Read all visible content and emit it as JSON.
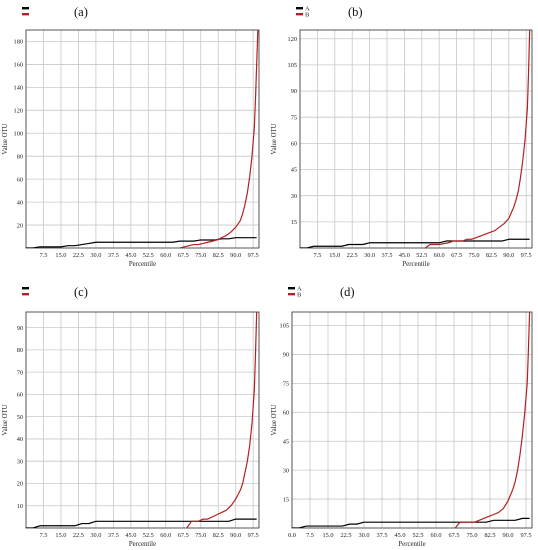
{
  "chart_data": [
    {
      "type": "line",
      "panel_label": "(a)",
      "xlabel": "Percentile",
      "ylabel": "Value OTU",
      "legend": [
        {
          "label": "",
          "color": "#000000"
        },
        {
          "label": "",
          "color": "#b22222"
        }
      ],
      "xlim": [
        0,
        100
      ],
      "ylim": [
        0,
        190
      ],
      "x_ticks": [
        "7.5",
        "15.0",
        "22.5",
        "30.0",
        "37.5",
        "45.0",
        "52.5",
        "60.0",
        "67.5",
        "75.0",
        "82.5",
        "90.0",
        "97.5"
      ],
      "y_ticks": [
        20,
        40,
        60,
        80,
        100,
        120,
        140,
        160,
        180
      ],
      "series": [
        {
          "color": "#000000",
          "x": [
            0,
            3,
            6,
            9,
            12,
            15,
            18,
            21,
            24,
            27,
            30,
            33,
            36,
            39,
            42,
            45,
            48,
            51,
            54,
            57,
            60,
            63,
            66,
            69,
            72,
            75,
            78,
            81,
            84,
            87,
            90,
            93,
            96,
            99
          ],
          "y": [
            0,
            0,
            1,
            1,
            1,
            1,
            2,
            2,
            3,
            4,
            5,
            5,
            5,
            5,
            5,
            5,
            5,
            5,
            5,
            5,
            5,
            5,
            6,
            6,
            6,
            7,
            7,
            7,
            8,
            8,
            9,
            9,
            9,
            9
          ]
        },
        {
          "color": "#b22222",
          "x": [
            66,
            68,
            70,
            72,
            74,
            76,
            78,
            80,
            82,
            84,
            86,
            88,
            90,
            91,
            92,
            93,
            94,
            95,
            96,
            97,
            98,
            98.5,
            99,
            99.5
          ],
          "y": [
            0,
            1,
            2,
            3,
            3,
            4,
            5,
            6,
            7,
            9,
            11,
            14,
            18,
            21,
            24,
            30,
            38,
            48,
            62,
            80,
            105,
            130,
            160,
            190
          ]
        }
      ]
    },
    {
      "type": "line",
      "panel_label": "(b)",
      "xlabel": "Percentile",
      "ylabel": "Value OTU",
      "legend": [
        {
          "label": "A",
          "color": "#000000"
        },
        {
          "label": "B",
          "color": "#b22222"
        }
      ],
      "xlim": [
        0,
        100
      ],
      "ylim": [
        0,
        125
      ],
      "x_ticks": [
        "7.5",
        "15.0",
        "22.5",
        "30.0",
        "37.5",
        "45.0",
        "52.5",
        "60.0",
        "67.5",
        "75.0",
        "82.5",
        "90.0",
        "97.5"
      ],
      "y_ticks": [
        15,
        30,
        45,
        60,
        75,
        90,
        105,
        120
      ],
      "series": [
        {
          "color": "#000000",
          "x": [
            0,
            3,
            6,
            9,
            12,
            15,
            18,
            21,
            24,
            27,
            30,
            33,
            36,
            39,
            42,
            45,
            48,
            51,
            54,
            57,
            60,
            63,
            66,
            69,
            72,
            75,
            78,
            81,
            84,
            87,
            90,
            93,
            96,
            99
          ],
          "y": [
            0,
            0,
            1,
            1,
            1,
            1,
            1,
            2,
            2,
            2,
            3,
            3,
            3,
            3,
            3,
            3,
            3,
            3,
            3,
            3,
            3,
            4,
            4,
            4,
            4,
            4,
            4,
            4,
            4,
            4,
            5,
            5,
            5,
            5
          ]
        },
        {
          "color": "#b22222",
          "x": [
            54,
            56,
            60,
            64,
            66,
            68,
            70,
            72,
            74,
            76,
            78,
            80,
            82,
            84,
            86,
            88,
            90,
            91,
            92,
            93,
            94,
            95,
            96,
            97,
            98,
            98.5,
            99
          ],
          "y": [
            0,
            2,
            2,
            3,
            4,
            4,
            4,
            5,
            5,
            6,
            7,
            8,
            9,
            10,
            12,
            14,
            17,
            20,
            23,
            27,
            32,
            40,
            50,
            62,
            80,
            100,
            125
          ]
        }
      ]
    },
    {
      "type": "line",
      "panel_label": "(c)",
      "xlabel": "Percentile",
      "ylabel": "Value OTU",
      "legend": [
        {
          "label": "",
          "color": "#000000"
        },
        {
          "label": "",
          "color": "#b22222"
        }
      ],
      "xlim": [
        0,
        100
      ],
      "ylim": [
        0,
        97
      ],
      "x_ticks": [
        "7.5",
        "15.0",
        "22.5",
        "30.0",
        "37.5",
        "45.0",
        "52.5",
        "60.0",
        "67.5",
        "75.0",
        "82.5",
        "90.0",
        "97.5"
      ],
      "y_ticks": [
        10,
        20,
        30,
        40,
        50,
        60,
        70,
        80,
        90
      ],
      "series": [
        {
          "color": "#000000",
          "x": [
            0,
            3,
            6,
            9,
            12,
            15,
            18,
            21,
            24,
            27,
            30,
            33,
            36,
            39,
            42,
            45,
            48,
            51,
            54,
            57,
            60,
            63,
            66,
            69,
            72,
            75,
            78,
            81,
            84,
            87,
            90,
            93,
            96,
            99
          ],
          "y": [
            0,
            0,
            1,
            1,
            1,
            1,
            1,
            1,
            2,
            2,
            3,
            3,
            3,
            3,
            3,
            3,
            3,
            3,
            3,
            3,
            3,
            3,
            3,
            3,
            3,
            3,
            3,
            3,
            3,
            3,
            4,
            4,
            4,
            4
          ]
        },
        {
          "color": "#b22222",
          "x": [
            69,
            71,
            74,
            76,
            78,
            80,
            82,
            84,
            86,
            88,
            90,
            91,
            92,
            93,
            94,
            95,
            96,
            97,
            98,
            98.5,
            99
          ],
          "y": [
            0,
            3,
            3,
            4,
            4,
            5,
            6,
            7,
            8,
            10,
            13,
            15,
            17,
            20,
            25,
            30,
            37,
            47,
            62,
            78,
            97
          ]
        }
      ]
    },
    {
      "type": "line",
      "panel_label": "(d)",
      "xlabel": "Percentile",
      "ylabel": "Value OTU",
      "legend": [
        {
          "label": "A",
          "color": "#000000"
        },
        {
          "label": "B",
          "color": "#b22222"
        }
      ],
      "xlim": [
        0,
        100
      ],
      "ylim": [
        0,
        112
      ],
      "x_ticks": [
        "0.0",
        "7.5",
        "15.0",
        "22.5",
        "30.0",
        "37.5",
        "45.0",
        "52.5",
        "60.0",
        "67.5",
        "75.0",
        "82.5",
        "90.0",
        "97.5"
      ],
      "y_ticks": [
        15,
        30,
        45,
        60,
        75,
        90,
        105
      ],
      "series": [
        {
          "color": "#000000",
          "x": [
            0,
            3,
            6,
            9,
            12,
            15,
            18,
            21,
            24,
            27,
            30,
            33,
            36,
            39,
            42,
            45,
            48,
            51,
            54,
            57,
            60,
            63,
            66,
            69,
            72,
            75,
            78,
            81,
            84,
            87,
            90,
            93,
            96,
            99
          ],
          "y": [
            0,
            0,
            1,
            1,
            1,
            1,
            1,
            1,
            2,
            2,
            3,
            3,
            3,
            3,
            3,
            3,
            3,
            3,
            3,
            3,
            3,
            3,
            3,
            3,
            3,
            3,
            3,
            3,
            4,
            4,
            4,
            4,
            5,
            5
          ]
        },
        {
          "color": "#b22222",
          "x": [
            68,
            70,
            72,
            74,
            76,
            78,
            80,
            82,
            84,
            86,
            88,
            90,
            91,
            92,
            93,
            94,
            95,
            96,
            97,
            98,
            98.5,
            99
          ],
          "y": [
            0,
            3,
            3,
            3,
            3,
            4,
            5,
            6,
            7,
            8,
            10,
            14,
            17,
            20,
            24,
            30,
            38,
            48,
            60,
            75,
            92,
            112
          ]
        }
      ]
    }
  ]
}
